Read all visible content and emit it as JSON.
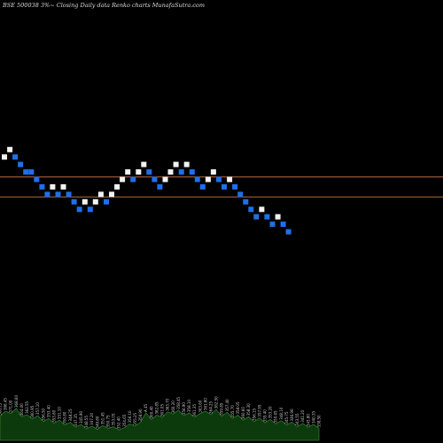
{
  "title": "BSE 500038  3%~   Closing Daily data  Renko  charts MunafaSutra.com",
  "chart_data": {
    "type": "renko",
    "price_range": [
      270,
      430
    ],
    "reference_lines": [
      359,
      351
    ],
    "colors": {
      "up": "#f2f2f2",
      "down": "#1f6fe8",
      "line": "#b86a3a",
      "volume_fill": "#0d3a0d",
      "volume_line": "#2f7a2f",
      "label": "#c8c8c8"
    },
    "bricks": [
      {
        "dir": "up",
        "y": 367
      },
      {
        "dir": "up",
        "y": 370
      },
      {
        "dir": "down",
        "y": 367
      },
      {
        "dir": "down",
        "y": 364
      },
      {
        "dir": "down",
        "y": 361
      },
      {
        "dir": "down",
        "y": 361
      },
      {
        "dir": "down",
        "y": 358
      },
      {
        "dir": "down",
        "y": 355
      },
      {
        "dir": "down",
        "y": 352
      },
      {
        "dir": "up",
        "y": 355
      },
      {
        "dir": "down",
        "y": 352
      },
      {
        "dir": "up",
        "y": 355
      },
      {
        "dir": "down",
        "y": 352
      },
      {
        "dir": "down",
        "y": 349
      },
      {
        "dir": "down",
        "y": 346
      },
      {
        "dir": "up",
        "y": 349
      },
      {
        "dir": "down",
        "y": 346
      },
      {
        "dir": "up",
        "y": 349
      },
      {
        "dir": "up",
        "y": 352
      },
      {
        "dir": "down",
        "y": 349
      },
      {
        "dir": "up",
        "y": 352
      },
      {
        "dir": "up",
        "y": 355
      },
      {
        "dir": "up",
        "y": 358
      },
      {
        "dir": "up",
        "y": 361
      },
      {
        "dir": "down",
        "y": 358
      },
      {
        "dir": "up",
        "y": 361
      },
      {
        "dir": "up",
        "y": 364
      },
      {
        "dir": "down",
        "y": 361
      },
      {
        "dir": "down",
        "y": 358
      },
      {
        "dir": "down",
        "y": 355
      },
      {
        "dir": "up",
        "y": 358
      },
      {
        "dir": "up",
        "y": 361
      },
      {
        "dir": "up",
        "y": 364
      },
      {
        "dir": "down",
        "y": 361
      },
      {
        "dir": "up",
        "y": 364
      },
      {
        "dir": "down",
        "y": 361
      },
      {
        "dir": "down",
        "y": 358
      },
      {
        "dir": "down",
        "y": 355
      },
      {
        "dir": "up",
        "y": 358
      },
      {
        "dir": "up",
        "y": 361
      },
      {
        "dir": "down",
        "y": 358
      },
      {
        "dir": "down",
        "y": 355
      },
      {
        "dir": "up",
        "y": 358
      },
      {
        "dir": "down",
        "y": 355
      },
      {
        "dir": "down",
        "y": 352
      },
      {
        "dir": "down",
        "y": 349
      },
      {
        "dir": "down",
        "y": 346
      },
      {
        "dir": "down",
        "y": 343
      },
      {
        "dir": "up",
        "y": 346
      },
      {
        "dir": "down",
        "y": 343
      },
      {
        "dir": "down",
        "y": 340
      },
      {
        "dir": "up",
        "y": 343
      },
      {
        "dir": "down",
        "y": 340
      },
      {
        "dir": "down",
        "y": 337
      }
    ],
    "volume": [
      {
        "v": 0.44,
        "label": "368.15"
      },
      {
        "v": 0.53,
        "label": "366.45"
      },
      {
        "v": 0.49,
        "label": "371.00"
      },
      {
        "v": 0.58,
        "label": "368.60"
      },
      {
        "v": 0.43,
        "label": "364.00"
      },
      {
        "v": 0.47,
        "label": "362.55"
      },
      {
        "v": 0.39,
        "label": "360.95"
      },
      {
        "v": 0.45,
        "label": "357.10"
      },
      {
        "v": 0.34,
        "label": "356.50"
      },
      {
        "v": 0.4,
        "label": "353.40"
      },
      {
        "v": 0.31,
        "label": "353.60"
      },
      {
        "v": 0.37,
        "label": "351.10"
      },
      {
        "v": 0.28,
        "label": "350.80"
      },
      {
        "v": 0.33,
        "label": "348.25"
      },
      {
        "v": 0.24,
        "label": "347.35"
      },
      {
        "v": 0.29,
        "label": "345.90"
      },
      {
        "v": 0.21,
        "label": "348.55"
      },
      {
        "v": 0.26,
        "label": "347.20"
      },
      {
        "v": 0.2,
        "label": "349.80"
      },
      {
        "v": 0.27,
        "label": "351.45"
      },
      {
        "v": 0.22,
        "label": "350.75"
      },
      {
        "v": 0.25,
        "label": "353.05"
      },
      {
        "v": 0.19,
        "label": "352.40"
      },
      {
        "v": 0.23,
        "label": "354.65"
      },
      {
        "v": 0.3,
        "label": "356.10"
      },
      {
        "v": 0.26,
        "label": "355.25"
      },
      {
        "v": 0.33,
        "label": "358.90"
      },
      {
        "v": 0.5,
        "label": "A 45"
      },
      {
        "v": 0.38,
        "label": "360.40"
      },
      {
        "v": 0.46,
        "label": "362.85"
      },
      {
        "v": 0.42,
        "label": "361.05"
      },
      {
        "v": 0.52,
        "label": "363.70"
      },
      {
        "v": 0.48,
        "label": "360.20"
      },
      {
        "v": 0.55,
        "label": "358.45"
      },
      {
        "v": 0.45,
        "label": "356.90"
      },
      {
        "v": 0.5,
        "label": "358.10"
      },
      {
        "v": 0.42,
        "label": "361.35"
      },
      {
        "v": 0.49,
        "label": "363.60"
      },
      {
        "v": 0.53,
        "label": "361.80"
      },
      {
        "v": 0.47,
        "label": "364.25"
      },
      {
        "v": 0.56,
        "label": "362.50"
      },
      {
        "v": 0.44,
        "label": "359.85"
      },
      {
        "v": 0.51,
        "label": "357.40"
      },
      {
        "v": 0.4,
        "label": "355.70"
      },
      {
        "v": 0.46,
        "label": "358.05"
      },
      {
        "v": 0.37,
        "label": "360.60"
      },
      {
        "v": 0.43,
        "label": "358.30"
      },
      {
        "v": 0.34,
        "label": "356.15"
      },
      {
        "v": 0.41,
        "label": "357.95"
      },
      {
        "v": 0.32,
        "label": "355.40"
      },
      {
        "v": 0.38,
        "label": "353.20"
      },
      {
        "v": 0.3,
        "label": "350.65"
      },
      {
        "v": 0.36,
        "label": "348.10"
      },
      {
        "v": 0.28,
        "label": "345.75"
      },
      {
        "v": 0.33,
        "label": "346.90"
      },
      {
        "v": 0.25,
        "label": "343.55"
      },
      {
        "v": 0.31,
        "label": "341.20"
      },
      {
        "v": 0.24,
        "label": "343.80"
      },
      {
        "v": 0.29,
        "label": "340.35"
      },
      {
        "v": 0.22,
        "label": "338.50"
      }
    ]
  }
}
